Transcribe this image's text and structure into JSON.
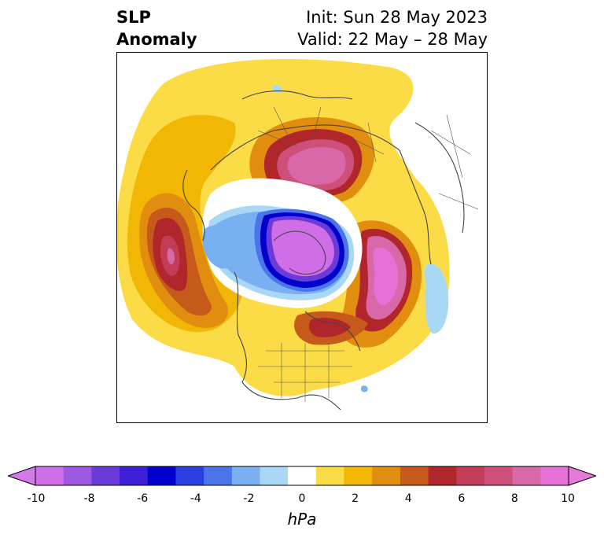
{
  "title": {
    "left_line1": "SLP",
    "left_line2": "Anomaly",
    "right_line1": "Init: Sun 28 May 2023",
    "right_line2": "Valid: 22 May – 28 May"
  },
  "colorbar": {
    "unit": "hPa",
    "ticks": [
      "-10",
      "-8",
      "-6",
      "-4",
      "-2",
      "0",
      "2",
      "4",
      "6",
      "8",
      "10"
    ],
    "colors": [
      "#cf6ee6",
      "#9d57e0",
      "#6b3bd9",
      "#3d1fd6",
      "#0000cc",
      "#2a3fe0",
      "#4a74e8",
      "#78b0f2",
      "#a9d8f7",
      "#ffffff",
      "#fbdc46",
      "#f2b705",
      "#e18d0f",
      "#c65a1a",
      "#b0262a",
      "#c23c57",
      "#cf4f7b",
      "#d968a8",
      "#e66fd8"
    ],
    "extend_low_color": "#d27ae8",
    "extend_high_color": "#e57ad9"
  }
}
